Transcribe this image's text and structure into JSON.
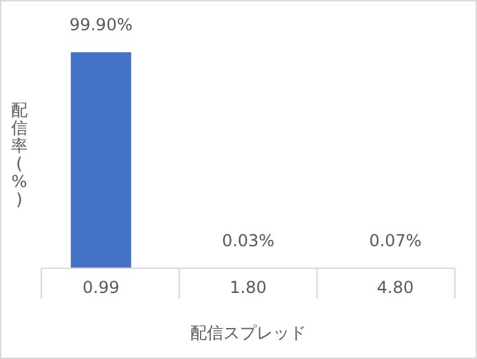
{
  "chart_data": {
    "type": "bar",
    "xlabel": "配信スプレッド",
    "ylabel": "配信率(%)",
    "categories": [
      "0.99",
      "1.80",
      "4.80"
    ],
    "values": [
      99.9,
      0.03,
      0.07
    ],
    "color": "#4472c4",
    "data_labels": true,
    "value_labels": [
      "99.90%",
      "0.03%",
      "0.07%"
    ]
  }
}
